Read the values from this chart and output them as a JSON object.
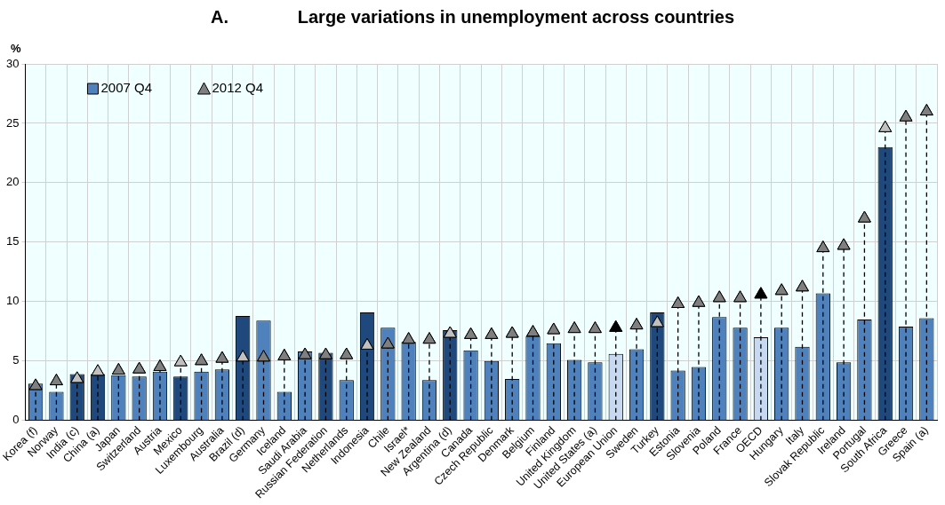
{
  "chart_data": {
    "type": "bar",
    "title": "A.              Large variations in unemployment across countries",
    "ylabel": "%",
    "categories": [
      "Korea (f)",
      "Norway",
      "India (c)",
      "China (a)",
      "Japan",
      "Switzerland",
      "Austria",
      "Mexico",
      "Luxembourg",
      "Australia",
      "Brazil (d)",
      "Germany",
      "Iceland",
      "Saudi Arabia",
      "Russian Federation",
      "Netherlands",
      "Indonesia",
      "Chile",
      "Israel*",
      "New Zealand",
      "Argentina (d)",
      "Canada",
      "Czech Republic",
      "Denmark",
      "Belgium",
      "Finland",
      "United Kingdom",
      "United States (a)",
      "European Union",
      "Sweden",
      "Turkey",
      "Estonia",
      "Slovenia",
      "Poland",
      "France",
      "OECD",
      "Hungary",
      "Italy",
      "Slovak Republic",
      "Ireland",
      "Portugal",
      "South Africa",
      "Greece",
      "Spain (a)"
    ],
    "series": [
      {
        "name": "2007 Q4",
        "color": "#4f81bd",
        "colors": [
          "#4f81bd",
          "#4f81bd",
          "#1f497d",
          "#1f497d",
          "#4f81bd",
          "#4f81bd",
          "#4f81bd",
          "#1f497d",
          "#4f81bd",
          "#4f81bd",
          "#1f497d",
          "#4f81bd",
          "#4f81bd",
          "#4f81bd",
          "#1f497d",
          "#4f81bd",
          "#1f497d",
          "#4f81bd",
          "#4f81bd",
          "#4f81bd",
          "#1f497d",
          "#4f81bd",
          "#4f81bd",
          "#4f81bd",
          "#4f81bd",
          "#4f81bd",
          "#4f81bd",
          "#4f81bd",
          "#c6d9f0",
          "#4f81bd",
          "#1f497d",
          "#4f81bd",
          "#4f81bd",
          "#4f81bd",
          "#4f81bd",
          "#c6d9f0",
          "#4f81bd",
          "#4f81bd",
          "#4f81bd",
          "#4f81bd",
          "#4f81bd",
          "#1f497d",
          "#4f81bd",
          "#4f81bd"
        ],
        "values": [
          3.1,
          2.4,
          3.9,
          3.9,
          3.8,
          3.7,
          4.1,
          3.7,
          4.1,
          4.3,
          8.8,
          8.4,
          2.4,
          5.8,
          5.7,
          3.4,
          9.1,
          7.8,
          6.6,
          3.4,
          7.6,
          5.9,
          5.0,
          3.5,
          7.1,
          6.5,
          5.1,
          4.9,
          5.6,
          6.0,
          9.1,
          4.2,
          4.5,
          8.7,
          7.8,
          7.0,
          7.8,
          6.2,
          10.7,
          4.9,
          8.5,
          23.0,
          7.9,
          8.6
        ]
      },
      {
        "name": "2012 Q4",
        "type": "scatter",
        "marker": "triangle",
        "color": "#7f7f7f",
        "x": [
          "Korea (f)",
          "Norway",
          "India (c)",
          "China (a)",
          "Japan",
          "Switzerland",
          "Austria",
          "Mexico",
          "Luxembourg",
          "Australia",
          "Brazil (d)",
          "Germany",
          "Iceland",
          "Saudi Arabia",
          "Russian Federation",
          "Netherlands",
          "Indonesia",
          "Chile",
          "Israel*",
          "New Zealand",
          "Argentina (d)",
          "Canada",
          "Czech Republic",
          "Denmark",
          "Belgium",
          "Finland",
          "United Kingdom",
          "United States (a)",
          "European Union",
          "Sweden",
          "Turkey",
          "Estonia",
          "Slovenia",
          "Poland",
          "France",
          "OECD",
          "Hungary",
          "Italy",
          "Slovak Republic",
          "Ireland",
          "Portugal",
          "South Africa",
          "Greece",
          "Spain (a)"
        ],
        "colors": [
          "#7f7f7f",
          "#7f7f7f",
          "#c0c0c0",
          "#c0c0c0",
          "#7f7f7f",
          "#7f7f7f",
          "#7f7f7f",
          "#c0c0c0",
          "#7f7f7f",
          "#7f7f7f",
          "#c0c0c0",
          "#7f7f7f",
          "#7f7f7f",
          "#7f7f7f",
          "#7f7f7f",
          "#7f7f7f",
          "#c0c0c0",
          "#7f7f7f",
          "#7f7f7f",
          "#7f7f7f",
          "#c0c0c0",
          "#7f7f7f",
          "#7f7f7f",
          "#7f7f7f",
          "#7f7f7f",
          "#7f7f7f",
          "#7f7f7f",
          "#7f7f7f",
          "#000000",
          "#7f7f7f",
          "#c0c0c0",
          "#7f7f7f",
          "#7f7f7f",
          "#7f7f7f",
          "#7f7f7f",
          "#000000",
          "#7f7f7f",
          "#7f7f7f",
          "#7f7f7f",
          "#7f7f7f",
          "#7f7f7f",
          "#c0c0c0",
          "#7f7f7f",
          "#7f7f7f"
        ],
        "values": [
          2.9,
          3.3,
          3.5,
          4.1,
          4.2,
          4.3,
          4.5,
          4.9,
          5.0,
          5.2,
          5.3,
          5.3,
          5.4,
          5.5,
          5.5,
          5.5,
          6.3,
          6.4,
          6.8,
          6.8,
          7.3,
          7.2,
          7.2,
          7.3,
          7.4,
          7.6,
          7.7,
          7.7,
          7.8,
          8.0,
          8.2,
          9.8,
          9.9,
          10.3,
          10.3,
          10.6,
          10.9,
          11.2,
          14.5,
          14.7,
          17.0,
          24.6,
          25.5,
          26.0
        ]
      }
    ],
    "ylim": [
      0,
      30
    ],
    "yticks": [
      0,
      5,
      10,
      15,
      20,
      25,
      30
    ],
    "grid": true,
    "legend": "top left"
  }
}
